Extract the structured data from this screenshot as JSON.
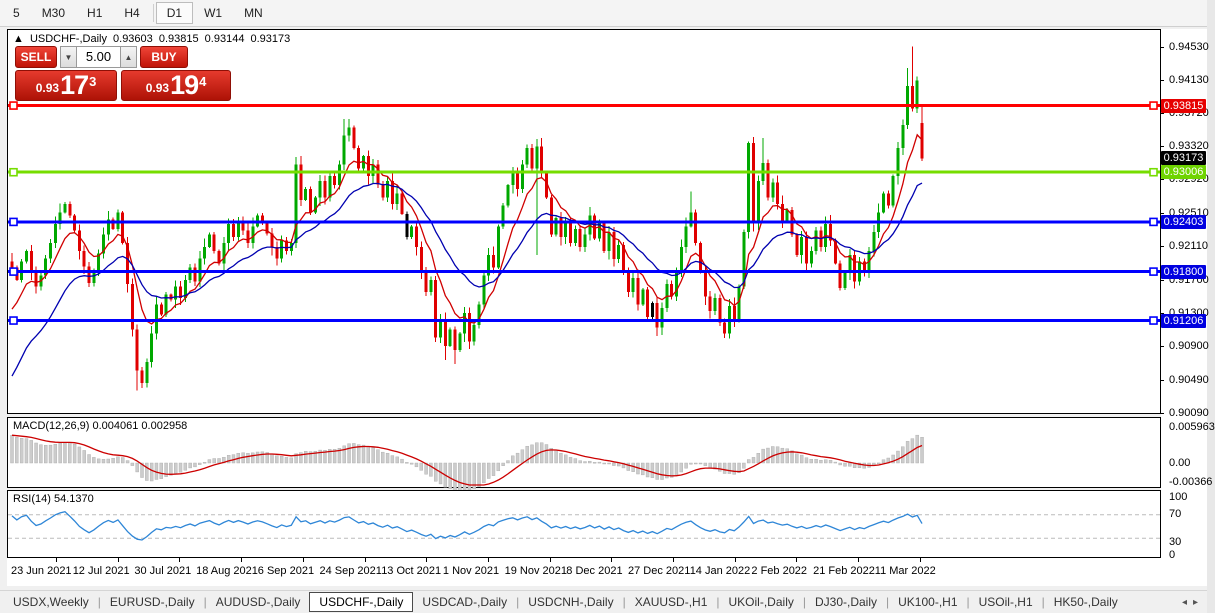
{
  "toolbar": {
    "items": [
      {
        "label": "5"
      },
      {
        "label": "M30"
      },
      {
        "label": "H1"
      },
      {
        "label": "H4"
      },
      {
        "label": "D1",
        "active": true,
        "sep_before": true
      },
      {
        "label": "W1"
      },
      {
        "label": "MN"
      }
    ]
  },
  "chart_header": {
    "collapse_icon": "▲",
    "title": "USDCHF-,Daily",
    "open": "0.93603",
    "high": "0.93815",
    "low": "0.93144",
    "close": "0.93173"
  },
  "trade_panel": {
    "sell_label": "SELL",
    "buy_label": "BUY",
    "volume": "5.00",
    "spin_down_icon": "▼",
    "spin_up_icon": "▲",
    "sell_price_prefix": "0.93",
    "sell_price_big": "17",
    "sell_price_sup": "3",
    "buy_price_prefix": "0.93",
    "buy_price_big": "19",
    "buy_price_sup": "4"
  },
  "price_axis": {
    "ticks": [
      0.9453,
      0.9413,
      0.9372,
      0.9332,
      0.9292,
      0.9251,
      0.9211,
      0.917,
      0.913,
      0.909,
      0.9049,
      0.9009
    ],
    "badges": [
      {
        "value": "0.93815",
        "price": 0.93815,
        "color": "#e60000"
      },
      {
        "value": "0.93173",
        "price": 0.93173,
        "color": "#000000"
      },
      {
        "value": "0.93006",
        "price": 0.93006,
        "color": "#6fd400"
      },
      {
        "value": "0.92403",
        "price": 0.92403,
        "color": "#0000e0"
      },
      {
        "value": "0.91800",
        "price": 0.918,
        "color": "#0000e0"
      },
      {
        "value": "0.91206",
        "price": 0.91206,
        "color": "#0000e0"
      }
    ]
  },
  "hlines": [
    {
      "price": 0.93815,
      "color": "#ff0000"
    },
    {
      "price": 0.93006,
      "color": "#76dd00"
    },
    {
      "price": 0.92403,
      "color": "#0000ff"
    },
    {
      "price": 0.918,
      "color": "#0000ff"
    },
    {
      "price": 0.91206,
      "color": "#0000ff"
    }
  ],
  "indicators": {
    "macd": {
      "label": "MACD(12,26,9)",
      "values": "0.004061 0.002958",
      "axis": [
        {
          "text": "0.005963",
          "y": 421
        },
        {
          "text": "0.00",
          "y": 457
        },
        {
          "text": "-0.00366",
          "y": 476
        }
      ]
    },
    "rsi": {
      "label": "RSI(14)",
      "value": "54.1370",
      "axis": [
        {
          "text": "100",
          "y": 491
        },
        {
          "text": "70",
          "y": 508
        },
        {
          "text": "30",
          "y": 536
        },
        {
          "text": "0",
          "y": 549
        }
      ],
      "levels": [
        70,
        30
      ]
    }
  },
  "dates": [
    "23 Jun 2021",
    "12 Jul 2021",
    "30 Jul 2021",
    "18 Aug 2021",
    "6 Sep 2021",
    "24 Sep 2021",
    "13 Oct 2021",
    "1 Nov 2021",
    "19 Nov 2021",
    "8 Dec 2021",
    "27 Dec 2021",
    "14 Jan 2022",
    "2 Feb 2022",
    "21 Feb 2022",
    "11 Mar 2022"
  ],
  "tabs": [
    {
      "label": "USDX,Weekly"
    },
    {
      "label": "EURUSD-,Daily"
    },
    {
      "label": "AUDUSD-,Daily"
    },
    {
      "label": "USDCHF-,Daily",
      "active": true
    },
    {
      "label": "USDCAD-,Daily"
    },
    {
      "label": "USDCNH-,Daily"
    },
    {
      "label": "XAUUSD-,H1"
    },
    {
      "label": "UKOil-,Daily"
    },
    {
      "label": "DJ30-,Daily"
    },
    {
      "label": "UK100-,H1"
    },
    {
      "label": "USOil-,H1"
    },
    {
      "label": "HK50-,Daily"
    }
  ],
  "tab_arrows": {
    "left": "◂",
    "right": "▸"
  },
  "chart_data": {
    "type": "candlestick",
    "symbol": "USDCHF-",
    "timeframe": "Daily",
    "last_ohlc": {
      "open": 0.93603,
      "high": 0.93815,
      "low": 0.93144,
      "close": 0.93173
    },
    "y_range": [
      0.90084,
      0.94732
    ],
    "colors": {
      "bull": "#00a800",
      "bear": "#e00000",
      "ma_fast": "#d00000",
      "ma_slow": "#0000b0",
      "macd_hist": "#cccccc",
      "macd_signal": "#cc0000",
      "rsi_line": "#2e86d7"
    },
    "first_open": 0.9192,
    "closes": [
      0.9185,
      0.917,
      0.9192,
      0.9205,
      0.918,
      0.9162,
      0.9175,
      0.9196,
      0.9215,
      0.9238,
      0.9252,
      0.9262,
      0.9248,
      0.923,
      0.9205,
      0.9186,
      0.9166,
      0.918,
      0.9202,
      0.9225,
      0.9243,
      0.9232,
      0.9252,
      0.9215,
      0.9165,
      0.911,
      0.906,
      0.9045,
      0.907,
      0.9105,
      0.914,
      0.9128,
      0.9152,
      0.9146,
      0.9162,
      0.9148,
      0.917,
      0.9185,
      0.9168,
      0.9196,
      0.921,
      0.9225,
      0.9205,
      0.919,
      0.9215,
      0.9238,
      0.9222,
      0.9242,
      0.923,
      0.9215,
      0.9235,
      0.9248,
      0.924,
      0.9226,
      0.921,
      0.9196,
      0.9218,
      0.9205,
      0.9215,
      0.931,
      0.9267,
      0.928,
      0.9252,
      0.927,
      0.929,
      0.927,
      0.9296,
      0.9285,
      0.931,
      0.9345,
      0.9355,
      0.933,
      0.9305,
      0.932,
      0.9296,
      0.931,
      0.9286,
      0.927,
      0.929,
      0.9262,
      0.9275,
      0.925,
      0.9222,
      0.9235,
      0.921,
      0.918,
      0.9155,
      0.917,
      0.91,
      0.912,
      0.909,
      0.911,
      0.9085,
      0.9105,
      0.913,
      0.9095,
      0.9115,
      0.914,
      0.9175,
      0.92,
      0.9185,
      0.9235,
      0.926,
      0.9285,
      0.93,
      0.928,
      0.931,
      0.933,
      0.9305,
      0.9332,
      0.93,
      0.927,
      0.9225,
      0.9245,
      0.9222,
      0.924,
      0.9215,
      0.9232,
      0.921,
      0.9225,
      0.9248,
      0.922,
      0.924,
      0.9205,
      0.9228,
      0.9195,
      0.9212,
      0.918,
      0.9155,
      0.9172,
      0.914,
      0.9158,
      0.9125,
      0.9142,
      0.9112,
      0.9136,
      0.9165,
      0.915,
      0.918,
      0.921,
      0.9235,
      0.9252,
      0.9215,
      0.918,
      0.915,
      0.9132,
      0.9148,
      0.9118,
      0.9105,
      0.9138,
      0.912,
      0.9162,
      0.9228,
      0.9336,
      0.9239,
      0.929,
      0.9312,
      0.927,
      0.9288,
      0.9262,
      0.924,
      0.9255,
      0.9225,
      0.92,
      0.9222,
      0.919,
      0.9205,
      0.923,
      0.921,
      0.9238,
      0.9218,
      0.919,
      0.916,
      0.918,
      0.92,
      0.9168,
      0.9192,
      0.9178,
      0.9205,
      0.9228,
      0.9252,
      0.9275,
      0.926,
      0.9296,
      0.933,
      0.9358,
      0.9405,
      0.9378,
      0.9412,
      0.93173
    ],
    "wick_pattern": [
      3,
      9,
      5,
      13,
      2,
      7,
      11,
      4,
      8,
      6
    ],
    "overrides": {
      "26": {
        "low": 0.9036
      },
      "27": {
        "low": 0.9039
      },
      "69": {
        "high": 0.9365
      },
      "82": {
        "color": "#000000"
      },
      "90": {
        "low": 0.9073
      },
      "92": {
        "low": 0.9068
      },
      "109": {
        "low": 0.92
      },
      "133": {
        "color": "#000000"
      },
      "141": {
        "high": 0.9277
      },
      "153": {
        "low": 0.922
      },
      "156": {
        "high": 0.9342
      },
      "186": {
        "high": 0.9427
      },
      "187": {
        "high": 0.9453
      },
      "189": {
        "open": 0.93603,
        "high": 0.93815,
        "low": 0.93144,
        "close": 0.93173
      }
    }
  }
}
